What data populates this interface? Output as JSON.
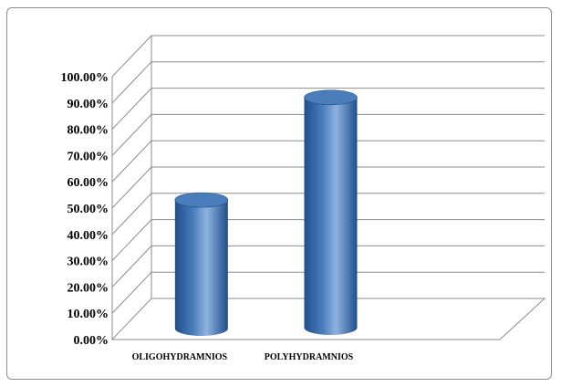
{
  "chart_data": {
    "type": "bar",
    "style": "3d-cylinder",
    "categories": [
      "OLIGOHYDRAMNIOS",
      "POLYHYDRAMNIOS"
    ],
    "values": [
      51.0,
      90.0
    ],
    "ylim": [
      0,
      100
    ],
    "yticks": [
      "0.00%",
      "10.00%",
      "20.00%",
      "30.00%",
      "40.00%",
      "50.00%",
      "60.00%",
      "70.00%",
      "80.00%",
      "90.00%",
      "100.00%"
    ],
    "grid": true,
    "legend": "none",
    "colors": {
      "bar": "#4a7ebb",
      "bar_light": "#8fb3e0",
      "bar_dark": "#1f4e8c",
      "grid": "#8c8c8c"
    }
  }
}
